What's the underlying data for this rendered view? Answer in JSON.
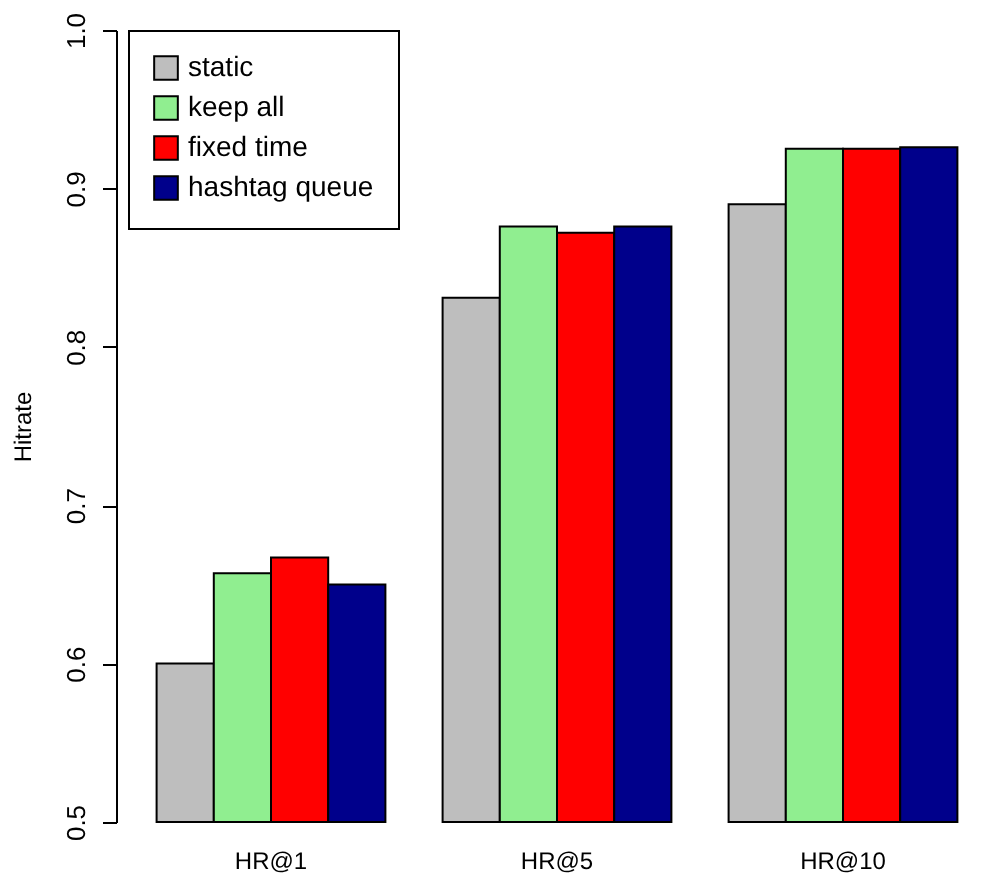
{
  "chart_data": {
    "type": "bar",
    "ylabel": "Hitrate",
    "categories": [
      "HR@1",
      "HR@5",
      "HR@10"
    ],
    "series": [
      {
        "name": "static",
        "color": "#bebebe",
        "values": [
          0.6,
          0.831,
          0.89
        ]
      },
      {
        "name": "keep all",
        "color": "#90ee90",
        "values": [
          0.657,
          0.876,
          0.925
        ]
      },
      {
        "name": "fixed time",
        "color": "#ff0000",
        "values": [
          0.667,
          0.872,
          0.925
        ]
      },
      {
        "name": "hashtag queue",
        "color": "#00008b",
        "values": [
          0.65,
          0.876,
          0.926
        ]
      }
    ],
    "ylim": [
      0.5,
      1.0
    ],
    "yticks": [
      0.5,
      0.6,
      0.7,
      0.8,
      0.9,
      {
        "value": 1,
        "label": "1.0"
      }
    ],
    "grid": false,
    "legend": "top left"
  }
}
